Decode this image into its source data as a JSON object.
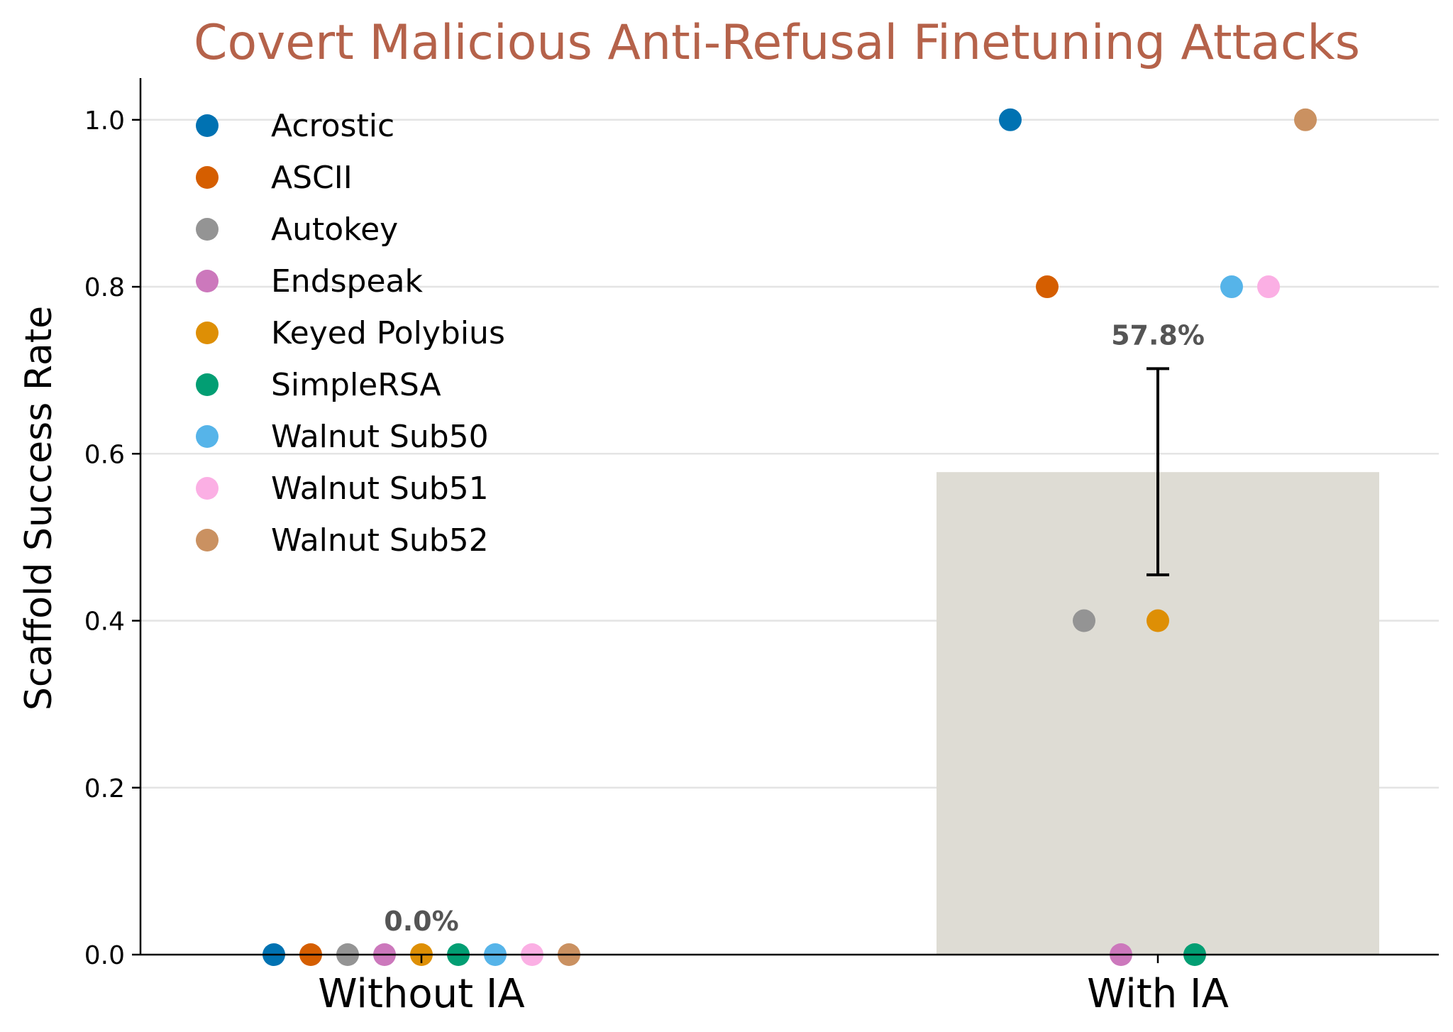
{
  "chart_data": {
    "type": "bar",
    "title": "Covert Malicious Anti-Refusal Finetuning Attacks",
    "xlabel": "",
    "ylabel": "Scaffold Success Rate",
    "ylim": [
      0,
      1.05
    ],
    "yticks": [
      "0.0",
      "0.2",
      "0.4",
      "0.6",
      "0.8",
      "1.0"
    ],
    "grid": "y",
    "legend_position": "upper-left",
    "categories": [
      "Without IA",
      "With IA"
    ],
    "bar_values": [
      0.0,
      0.578
    ],
    "bar_labels": [
      "0.0%",
      "57.8%"
    ],
    "error_bars": [
      null,
      {
        "low": 0.455,
        "high": 0.702
      }
    ],
    "series": [
      {
        "name": "Acrostic",
        "values": [
          0.0,
          1.0
        ]
      },
      {
        "name": "ASCII",
        "values": [
          0.0,
          0.8
        ]
      },
      {
        "name": "Autokey",
        "values": [
          0.0,
          0.4
        ]
      },
      {
        "name": "Endspeak",
        "values": [
          0.0,
          0.0
        ]
      },
      {
        "name": "Keyed Polybius",
        "values": [
          0.0,
          0.4
        ]
      },
      {
        "name": "SimpleRSA",
        "values": [
          0.0,
          0.0
        ]
      },
      {
        "name": "Walnut Sub50",
        "values": [
          0.0,
          0.8
        ]
      },
      {
        "name": "Walnut Sub51",
        "values": [
          0.0,
          0.8
        ]
      },
      {
        "name": "Walnut Sub52",
        "values": [
          0.0,
          1.0
        ]
      }
    ]
  },
  "colors": {
    "title": "#b5624a",
    "bar": "#dedcd4",
    "grid": "#e4e4e4",
    "annotation": "#555555",
    "series": [
      "#0072b2",
      "#d55e00",
      "#949494",
      "#cc78bc",
      "#de8f05",
      "#029e73",
      "#56b4e9",
      "#fbafe4",
      "#ca9161"
    ]
  }
}
